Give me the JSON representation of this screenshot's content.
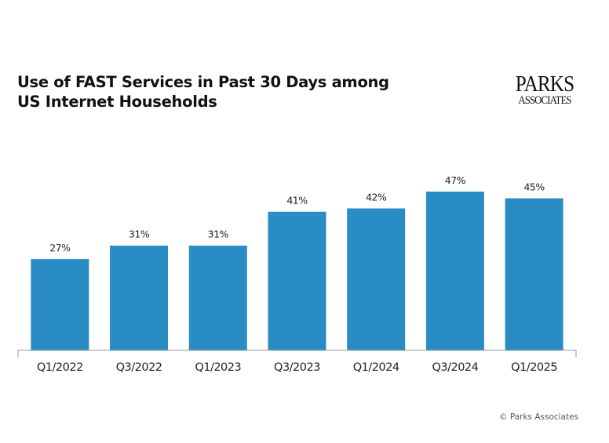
{
  "chart_data": {
    "type": "bar",
    "title": "Use of FAST Services in Past 30 Days among US Internet Households",
    "title_lines": [
      "Use of FAST Services in Past 30 Days among",
      "US Internet Households"
    ],
    "categories": [
      "Q1/2022",
      "Q3/2022",
      "Q1/2023",
      "Q3/2023",
      "Q1/2024",
      "Q3/2024",
      "Q1/2025"
    ],
    "values": [
      27,
      31,
      31,
      41,
      42,
      47,
      45
    ],
    "value_labels": [
      "27%",
      "31%",
      "31%",
      "41%",
      "42%",
      "47%",
      "45%"
    ],
    "xlabel": "",
    "ylabel": "",
    "ylim": [
      0,
      70
    ],
    "grid": false,
    "legend": "none",
    "bar_color": "#2a8cc4"
  },
  "logo": {
    "line1": "PARKS",
    "line2": "ASSOCIATES"
  },
  "copyright": "© Parks Associates"
}
